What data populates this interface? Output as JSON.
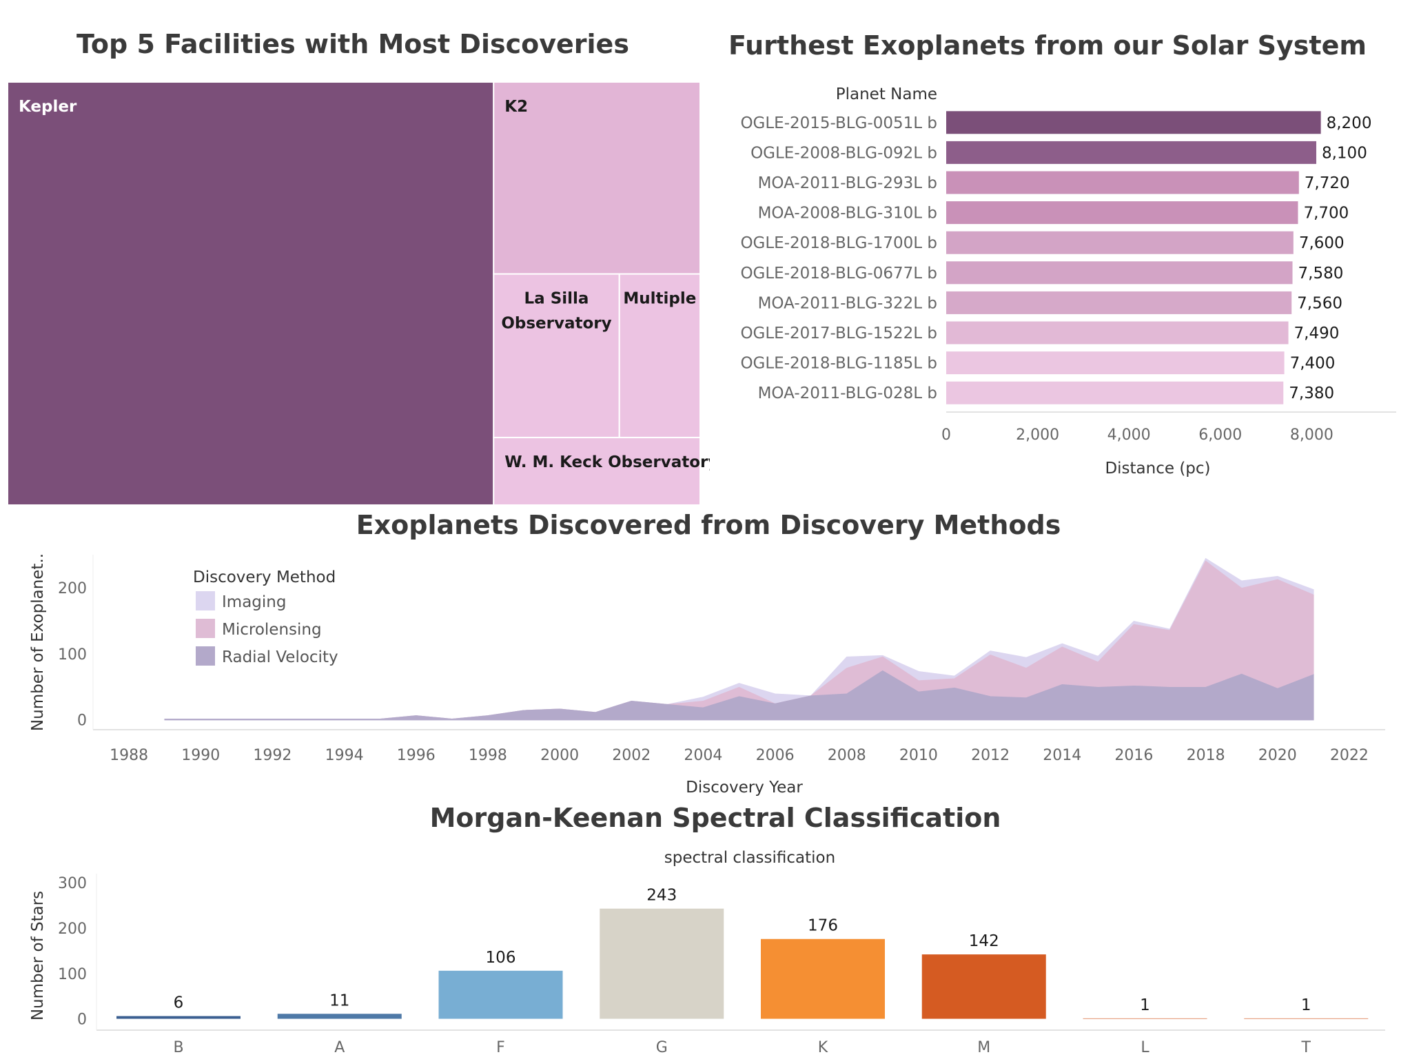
{
  "dashboard": {
    "titles": {
      "treemap": "Top 5 Facilities with Most Discoveries",
      "furthest": "Furthest Exoplanets from our Solar System",
      "methods": "Exoplanets Discovered from Discovery Methods",
      "spectral": "Morgan-Keenan Spectral Classification"
    }
  },
  "chart_data": [
    {
      "id": "treemap",
      "type": "treemap",
      "title": "Top 5 Facilities with Most Discoveries",
      "labels": [
        "Kepler",
        "K2",
        "La Silla Observatory",
        "Multiple",
        "W. M. Keck Observatory"
      ],
      "values": [
        2800,
        540,
        280,
        180,
        190
      ],
      "colors": [
        "#7b4f79",
        "#e2b5d6",
        "#ecc3e2",
        "#ecc3e2",
        "#ecc3e2"
      ]
    },
    {
      "id": "furthest",
      "type": "bar",
      "orientation": "horizontal",
      "title": "Furthest Exoplanets from our Solar System",
      "ylabel": "Planet Name",
      "xlabel": "Distance (pc)",
      "xlim": [
        0,
        9850
      ],
      "xticks": [
        0,
        2000,
        4000,
        6000,
        8000
      ],
      "xtick_labels": [
        "0",
        "2,000",
        "4,000",
        "6,000",
        "8,000"
      ],
      "categories": [
        "OGLE-2015-BLG-0051L b",
        "OGLE-2008-BLG-092L b",
        "MOA-2011-BLG-293L b",
        "MOA-2008-BLG-310L b",
        "OGLE-2018-BLG-1700L b",
        "OGLE-2018-BLG-0677L b",
        "MOA-2011-BLG-322L b",
        "OGLE-2017-BLG-1522L b",
        "OGLE-2018-BLG-1185L b",
        "MOA-2011-BLG-028L b"
      ],
      "values": [
        8200,
        8100,
        7720,
        7700,
        7600,
        7580,
        7560,
        7490,
        7400,
        7380
      ],
      "value_labels": [
        "8,200",
        "8,100",
        "7,720",
        "7,700",
        "7,600",
        "7,580",
        "7,560",
        "7,490",
        "7,400",
        "7,380"
      ],
      "colors": [
        "#7b4f79",
        "#8d5e8a",
        "#c991b8",
        "#c991b8",
        "#d3a4c6",
        "#d3a4c6",
        "#d6a9c9",
        "#e2b9d6",
        "#ebc6e1",
        "#ebc6e1"
      ]
    },
    {
      "id": "methods",
      "type": "area",
      "stacked": true,
      "title": "Exoplanets Discovered from Discovery Methods",
      "xlabel": "Discovery Year",
      "ylabel": "Number of Exoplanet..",
      "xlim": [
        1987,
        2023
      ],
      "ylim": [
        -15,
        250
      ],
      "xticks": [
        1988,
        1990,
        1992,
        1994,
        1996,
        1998,
        2000,
        2002,
        2004,
        2006,
        2008,
        2010,
        2012,
        2014,
        2016,
        2018,
        2020,
        2022
      ],
      "yticks": [
        0,
        100,
        200
      ],
      "legend": {
        "title": "Discovery Method",
        "position": "top-left"
      },
      "x": [
        1989,
        1990,
        1991,
        1992,
        1993,
        1994,
        1995,
        1996,
        1997,
        1998,
        1999,
        2000,
        2001,
        2002,
        2003,
        2004,
        2005,
        2006,
        2007,
        2008,
        2009,
        2010,
        2011,
        2012,
        2013,
        2014,
        2015,
        2016,
        2017,
        2018,
        2019,
        2020,
        2021
      ],
      "series": [
        {
          "name": "Radial Velocity",
          "color": "#b3a9ca",
          "values": [
            1,
            1,
            1,
            1,
            1,
            1,
            1,
            6,
            1,
            6,
            14,
            16,
            11,
            28,
            23,
            18,
            35,
            24,
            36,
            39,
            74,
            42,
            48,
            35,
            33,
            53,
            49,
            51,
            49,
            49,
            69,
            47,
            68
          ]
        },
        {
          "name": "Microlensing",
          "color": "#dfbcd5",
          "values": [
            0,
            0,
            0,
            0,
            0,
            0,
            0,
            0,
            0,
            0,
            0,
            0,
            0,
            0,
            0,
            10,
            14,
            0,
            0,
            39,
            21,
            17,
            14,
            63,
            45,
            57,
            38,
            93,
            86,
            191,
            130,
            165,
            121
          ]
        },
        {
          "name": "Imaging",
          "color": "#dcd6f0",
          "values": [
            0,
            0,
            0,
            0,
            0,
            0,
            0,
            0,
            0,
            0,
            0,
            0,
            0,
            0,
            0,
            6,
            6,
            15,
            0,
            17,
            2,
            14,
            4,
            6,
            16,
            5,
            9,
            5,
            2,
            4,
            11,
            5,
            8
          ]
        }
      ]
    },
    {
      "id": "spectral",
      "type": "bar",
      "title": "Morgan-Keenan Spectral Classification",
      "subtitle": "spectral classification",
      "ylabel": "Number of Stars",
      "ylim": [
        -25,
        320
      ],
      "yticks": [
        0,
        100,
        200,
        300
      ],
      "categories": [
        "B",
        "A",
        "F",
        "G",
        "K",
        "M",
        "L",
        "T"
      ],
      "values": [
        6,
        11,
        106,
        243,
        176,
        142,
        1,
        1
      ],
      "colors": [
        "#3b5f91",
        "#4e79a7",
        "#78aed3",
        "#d7d3c8",
        "#f58f33",
        "#d55b22",
        "#d55b22",
        "#d55b22"
      ]
    }
  ]
}
